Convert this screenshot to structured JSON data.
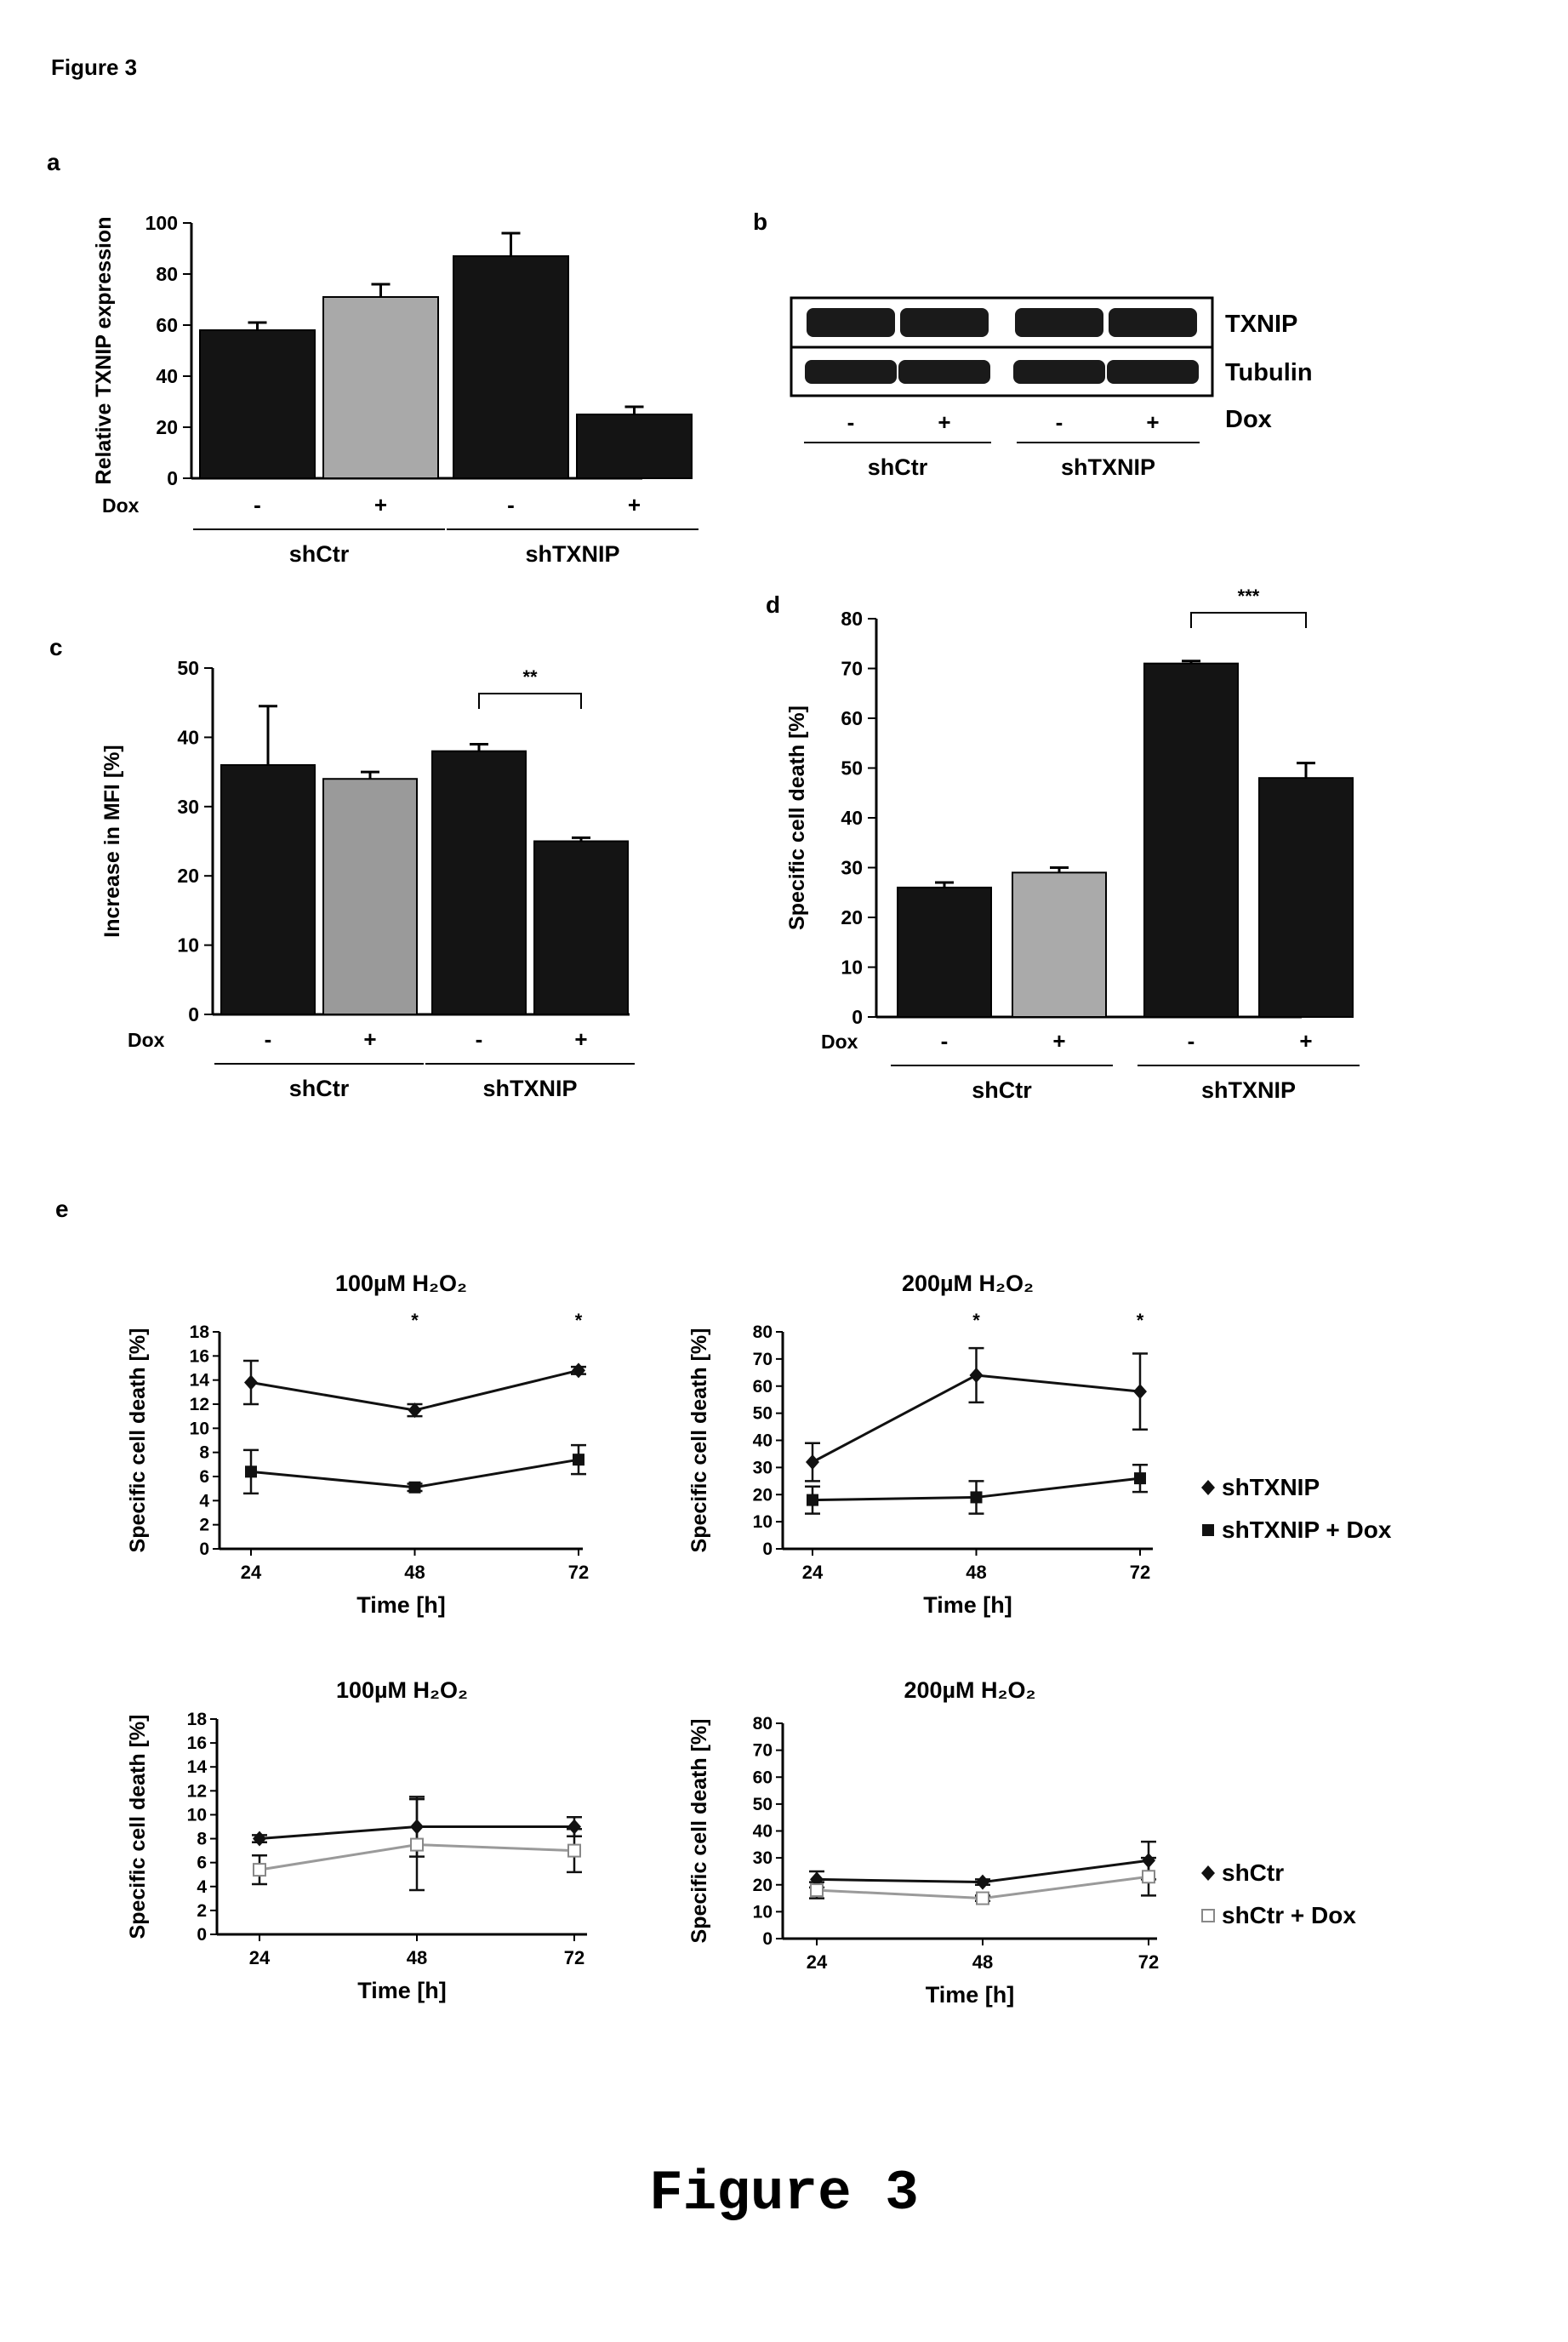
{
  "header": {
    "figure_label": "Figure 3"
  },
  "caption": {
    "text": "Figure 3"
  },
  "chart_data": [
    {
      "panel": "a",
      "type": "bar",
      "ylabel": "Relative TXNIP expression",
      "ylim": [
        0,
        100
      ],
      "yticks": [
        0,
        20,
        40,
        60,
        80,
        100
      ],
      "dox_label": "Dox",
      "dox_values": [
        "-",
        "+",
        "-",
        "+"
      ],
      "groups": [
        "shCtr",
        "shTXNIP"
      ],
      "values": [
        58,
        71,
        87,
        25
      ],
      "errors": [
        3,
        5,
        9,
        3
      ],
      "fills": [
        "#141414",
        "#a9a9a9",
        "#141414",
        "#141414"
      ]
    },
    {
      "panel": "b",
      "type": "blot",
      "rows": [
        "TXNIP",
        "Tubulin"
      ],
      "dox_label": "Dox",
      "dox_values": [
        "-",
        "+",
        "-",
        "+"
      ],
      "groups": [
        "shCtr",
        "shTXNIP"
      ]
    },
    {
      "panel": "c",
      "type": "bar",
      "ylabel": "Increase in MFI [%]",
      "ylim": [
        0,
        50
      ],
      "yticks": [
        0,
        10,
        20,
        30,
        40,
        50
      ],
      "dox_label": "Dox",
      "dox_values": [
        "-",
        "+",
        "-",
        "+"
      ],
      "groups": [
        "shCtr",
        "shTXNIP"
      ],
      "values": [
        36,
        34,
        38,
        25
      ],
      "errors": [
        8.5,
        1,
        1,
        0.5
      ],
      "fills": [
        "#141414",
        "#9a9a9a",
        "#141414",
        "#141414"
      ],
      "significance": "**"
    },
    {
      "panel": "d",
      "type": "bar",
      "ylabel": "Specific cell death [%]",
      "ylim": [
        0,
        80
      ],
      "yticks": [
        0,
        10,
        20,
        30,
        40,
        50,
        60,
        70,
        80
      ],
      "dox_label": "Dox",
      "dox_values": [
        "-",
        "+",
        "-",
        "+"
      ],
      "groups": [
        "shCtr",
        "shTXNIP"
      ],
      "values": [
        26,
        29,
        71,
        48
      ],
      "errors": [
        1,
        1,
        0.5,
        3
      ],
      "fills": [
        "#141414",
        "#aaaaaa",
        "#141414",
        "#141414"
      ],
      "significance": "***"
    },
    {
      "panel": "e",
      "type": "line",
      "title": "100µM H₂O₂",
      "xlabel": "Time [h]",
      "ylabel": "Specific cell death [%]",
      "x": [
        24,
        48,
        72
      ],
      "ylim": [
        0,
        18
      ],
      "yticks": [
        0,
        2,
        4,
        6,
        8,
        10,
        12,
        14,
        16,
        18
      ],
      "series": [
        {
          "name": "shTXNIP",
          "values": [
            13.8,
            11.5,
            14.8
          ],
          "errors": [
            1.8,
            0.5,
            0.3
          ],
          "marker": "diamond"
        },
        {
          "name": "shTXNIP + Dox",
          "values": [
            6.4,
            5.1,
            7.4
          ],
          "errors": [
            1.8,
            0.3,
            1.2
          ],
          "marker": "square"
        }
      ],
      "annotations": [
        "",
        "*",
        "*"
      ]
    },
    {
      "panel": "e",
      "type": "line",
      "title": "200µM H₂O₂",
      "xlabel": "Time [h]",
      "ylabel": "Specific cell death [%]",
      "x": [
        24,
        48,
        72
      ],
      "ylim": [
        0,
        80
      ],
      "yticks": [
        0,
        10,
        20,
        30,
        40,
        50,
        60,
        70,
        80
      ],
      "series": [
        {
          "name": "shTXNIP",
          "values": [
            32,
            64,
            58
          ],
          "errors": [
            7,
            10,
            14
          ],
          "marker": "diamond"
        },
        {
          "name": "shTXNIP + Dox",
          "values": [
            18,
            19,
            26
          ],
          "errors": [
            5,
            6,
            5
          ],
          "marker": "square"
        }
      ],
      "annotations": [
        "",
        "*",
        "*"
      ],
      "legend": "right"
    },
    {
      "panel": "e",
      "type": "line",
      "title": "100µM H₂O₂",
      "xlabel": "Time [h]",
      "ylabel": "Specific cell death [%]",
      "x": [
        24,
        48,
        72
      ],
      "ylim": [
        0,
        18
      ],
      "yticks": [
        0,
        2,
        4,
        6,
        8,
        10,
        12,
        14,
        16,
        18
      ],
      "series": [
        {
          "name": "shCtr",
          "values": [
            8.0,
            9.0,
            9.0
          ],
          "errors": [
            0.3,
            2.5,
            0.8
          ],
          "marker": "diamond"
        },
        {
          "name": "shCtr + Dox",
          "values": [
            5.4,
            7.5,
            7.0
          ],
          "errors": [
            1.2,
            3.8,
            1.8
          ],
          "marker": "open-square"
        }
      ]
    },
    {
      "panel": "e",
      "type": "line",
      "title": "200µM H₂O₂",
      "xlabel": "Time [h]",
      "ylabel": "Specific cell death [%]",
      "x": [
        24,
        48,
        72
      ],
      "ylim": [
        0,
        80
      ],
      "yticks": [
        0,
        10,
        20,
        30,
        40,
        50,
        60,
        70,
        80
      ],
      "series": [
        {
          "name": "shCtr",
          "values": [
            22,
            21,
            29
          ],
          "errors": [
            3,
            1,
            7
          ],
          "marker": "diamond"
        },
        {
          "name": "shCtr + Dox",
          "values": [
            18,
            15,
            23
          ],
          "errors": [
            3,
            1,
            7
          ],
          "marker": "open-square"
        }
      ],
      "legend": "right"
    }
  ]
}
